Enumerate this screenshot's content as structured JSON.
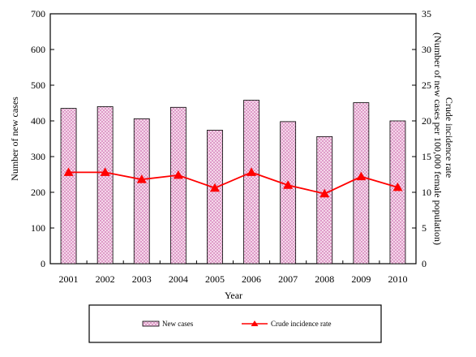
{
  "chart_data": {
    "type": "bar",
    "categories": [
      "2001",
      "2002",
      "2003",
      "2004",
      "2005",
      "2006",
      "2007",
      "2008",
      "2009",
      "2010"
    ],
    "series": [
      {
        "name": "New cases",
        "type": "bar",
        "axis": "left",
        "values": [
          435,
          440,
          406,
          438,
          374,
          458,
          398,
          356,
          451,
          400
        ],
        "fill": "#f3c6e3",
        "pattern": "crosshatch"
      },
      {
        "name": "Crude incidence rate",
        "type": "line",
        "axis": "right",
        "marker": "triangle",
        "values": [
          12.8,
          12.8,
          11.8,
          12.4,
          10.6,
          12.8,
          11.0,
          9.8,
          12.2,
          10.7
        ],
        "color": "#ff0000"
      }
    ],
    "xlabel": "Year",
    "ylabel": "Number of new cases",
    "y2label_lines": [
      "Crude incidence rate",
      "(Number of new cases per 100,000 female population)"
    ],
    "ylim": [
      0,
      700
    ],
    "y2lim": [
      0,
      35
    ],
    "yticks": [
      "0",
      "100",
      "200",
      "300",
      "400",
      "500",
      "600",
      "700"
    ],
    "y2ticks": [
      "0",
      "5",
      "10",
      "15",
      "20",
      "25",
      "30",
      "35"
    ],
    "grid": false,
    "legend": "bottom"
  }
}
